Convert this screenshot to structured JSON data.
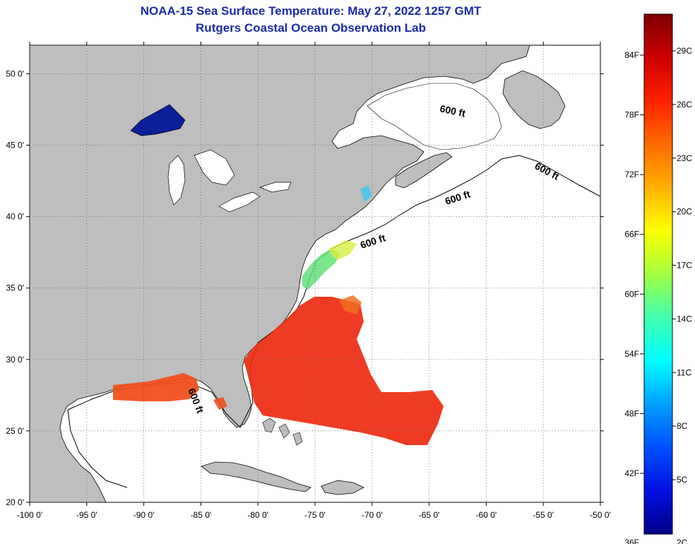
{
  "title": {
    "line1": "NOAA-15 Sea Surface Temperature:  May 27, 2022 1257 GMT",
    "line2": "Rutgers Coastal Ocean Observation Lab"
  },
  "map": {
    "lon_range": [
      -100,
      -50
    ],
    "lat_range": [
      20,
      52
    ],
    "x_ticks": [
      "-100 0'",
      "-95 0'",
      "-90 0'",
      "-85 0'",
      "-80 0'",
      "-75 0'",
      "-70 0'",
      "-65 0'",
      "-60 0'",
      "-55 0'",
      "-50 0'"
    ],
    "y_ticks": [
      {
        "lat": 50,
        "label": "50 0'"
      },
      {
        "lat": 45,
        "label": "45 0'"
      },
      {
        "lat": 40,
        "label": "40 0'"
      },
      {
        "lat": 35,
        "label": "35 0'"
      },
      {
        "lat": 30,
        "label": "30 0'"
      },
      {
        "lat": 25,
        "label": "25 0'"
      },
      {
        "lat": 20,
        "label": "20 0'"
      }
    ],
    "grid": "dotted",
    "contour_label": "600 ft",
    "colors": {
      "land": "#bebebe",
      "ocean": "#ffffff",
      "gulf_stream": "#ee2a10",
      "warm_water": "#f0501e",
      "shelf_water": "#64e07a",
      "cold_lake": "#0a1f9a"
    }
  },
  "colorbar": {
    "f_labels": [
      "84F",
      "78F",
      "72F",
      "66F",
      "60F",
      "54F",
      "48F",
      "42F",
      "36F"
    ],
    "c_labels": [
      "29C",
      "26C",
      "23C",
      "20C",
      "17C",
      "14C",
      "11C",
      "8C",
      "5C",
      "2C"
    ],
    "gradient": [
      "#800000",
      "#cc0000",
      "#ff2000",
      "#ff6a00",
      "#ffb000",
      "#ffff00",
      "#a0ff40",
      "#40ffb0",
      "#00ffff",
      "#00a0ff",
      "#0050ff",
      "#0010e0",
      "#00008a"
    ]
  }
}
